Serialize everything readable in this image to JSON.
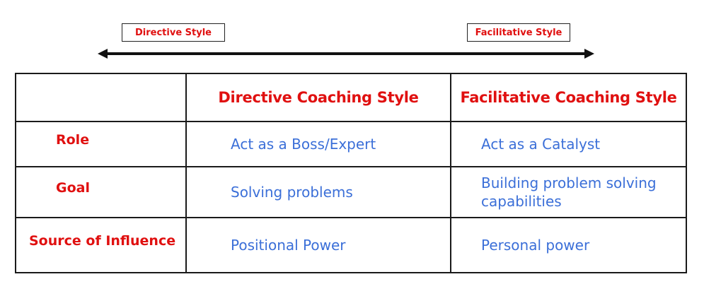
{
  "spectrum": {
    "left_label": "Directive Style",
    "right_label": "Facilitative Style"
  },
  "table": {
    "headers": [
      "",
      "Directive Coaching Style",
      "Facilitative Coaching Style"
    ],
    "rows": [
      {
        "label": "Role",
        "directive": "Act as a Boss/Expert",
        "facilitative": "Act as a Catalyst"
      },
      {
        "label": "Goal",
        "directive": "Solving problems",
        "facilitative": "Building problem solving capabilities"
      },
      {
        "label": "Source of Influence",
        "directive": "Positional Power",
        "facilitative": "Personal power"
      }
    ]
  },
  "colors": {
    "accent_red": "#e01010",
    "body_blue": "#3b6fd8",
    "border": "#1a1a1a"
  }
}
